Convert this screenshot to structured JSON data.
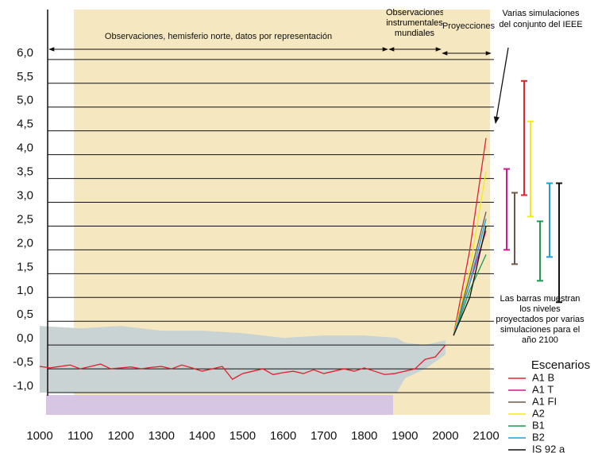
{
  "chart_data": {
    "type": "line",
    "annotations": [
      "Observaciones, hemisferio norte, datos por representación",
      "Observaciones instrumentales mundiales",
      "Proyecciones",
      "Varias simulaciones del conjunto del IEEE",
      "Las barras muestran los niveles proyectados por varias simulaciones para el año 2100"
    ],
    "legend_title": "Escenarios",
    "xlim": [
      1000,
      2100
    ],
    "ylim": [
      -1.1,
      7.05
    ],
    "xticks": [
      1000,
      1100,
      1200,
      1300,
      1400,
      1500,
      1600,
      1700,
      1800,
      1900,
      2000,
      2100
    ],
    "yticks": [
      {
        "value": 6,
        "label": "6,0"
      },
      {
        "value": 5.5,
        "label": "5,5"
      },
      {
        "value": 5,
        "label": "5,0"
      },
      {
        "value": 4.5,
        "label": "4,5"
      },
      {
        "value": 4,
        "label": "4,0"
      },
      {
        "value": 3.5,
        "label": "3,5"
      },
      {
        "value": 3,
        "label": "3,0"
      },
      {
        "value": 2.5,
        "label": "2,5"
      },
      {
        "value": 2,
        "label": "2,0"
      },
      {
        "value": 1.5,
        "label": "1,5"
      },
      {
        "value": 1,
        "label": "1,0"
      },
      {
        "value": 0.5,
        "label": "0,5"
      },
      {
        "value": 0,
        "label": "0,0"
      },
      {
        "value": -0.5,
        "label": "-0,5"
      },
      {
        "value": -1,
        "label": "-1,0"
      }
    ],
    "grid": true,
    "band": {
      "color": "#c9d3d3",
      "x": [
        1000,
        1100,
        1200,
        1300,
        1400,
        1500,
        1600,
        1700,
        1800,
        1880,
        1900,
        1950,
        2000
      ],
      "upper": [
        0.4,
        0.35,
        0.4,
        0.3,
        0.3,
        0.25,
        0.15,
        0.2,
        0.2,
        0.15,
        0.05,
        0.0,
        0.1
      ],
      "lower": [
        -1.0,
        -1.0,
        -1.0,
        -1.0,
        -1.0,
        -1.0,
        -1.0,
        -1.0,
        -1.0,
        -1.0,
        -0.7,
        -0.5,
        -0.2
      ]
    },
    "observed": {
      "color": "#e0202a",
      "x": [
        1000,
        1025,
        1050,
        1075,
        1100,
        1125,
        1150,
        1175,
        1200,
        1225,
        1250,
        1275,
        1300,
        1325,
        1350,
        1375,
        1400,
        1425,
        1450,
        1475,
        1500,
        1525,
        1550,
        1575,
        1600,
        1625,
        1650,
        1675,
        1700,
        1725,
        1750,
        1775,
        1800,
        1825,
        1850,
        1875,
        1900,
        1925,
        1950,
        1975,
        2000
      ],
      "values": [
        -0.45,
        -0.48,
        -0.45,
        -0.42,
        -0.5,
        -0.45,
        -0.4,
        -0.5,
        -0.48,
        -0.46,
        -0.5,
        -0.47,
        -0.45,
        -0.5,
        -0.42,
        -0.48,
        -0.55,
        -0.5,
        -0.45,
        -0.72,
        -0.6,
        -0.55,
        -0.5,
        -0.62,
        -0.58,
        -0.55,
        -0.6,
        -0.52,
        -0.6,
        -0.55,
        -0.5,
        -0.55,
        -0.48,
        -0.55,
        -0.62,
        -0.6,
        -0.55,
        -0.5,
        -0.3,
        -0.25,
        0.0
      ]
    },
    "x": [
      2020,
      2060,
      2100
    ],
    "series": [
      {
        "name": "A1 B",
        "color": "#e32230",
        "values": [
          0.2,
          2.0,
          4.35
        ],
        "range": [
          3.15,
          5.55
        ]
      },
      {
        "name": "A1 T",
        "color": "#d6168e",
        "values": [
          0.2,
          1.3,
          2.4
        ],
        "range": [
          2.0,
          3.7
        ]
      },
      {
        "name": "A1 FI",
        "color": "#6e5a48",
        "values": [
          0.2,
          1.45,
          2.8
        ],
        "range": [
          1.7,
          3.2
        ]
      },
      {
        "name": "A2",
        "color": "#f2ea1c",
        "values": [
          0.2,
          1.6,
          3.65
        ],
        "range": [
          2.7,
          4.7
        ]
      },
      {
        "name": "B1",
        "color": "#1a9a50",
        "values": [
          0.2,
          1.15,
          1.9
        ],
        "range": [
          1.35,
          2.6
        ]
      },
      {
        "name": "B2",
        "color": "#1aa0dc",
        "values": [
          0.2,
          1.3,
          2.65
        ],
        "range": [
          1.85,
          3.4
        ]
      },
      {
        "name": "IS 92 a",
        "color": "#111111",
        "values": [
          0.2,
          1.0,
          2.5
        ],
        "range": [
          0.9,
          3.4
        ]
      }
    ]
  }
}
